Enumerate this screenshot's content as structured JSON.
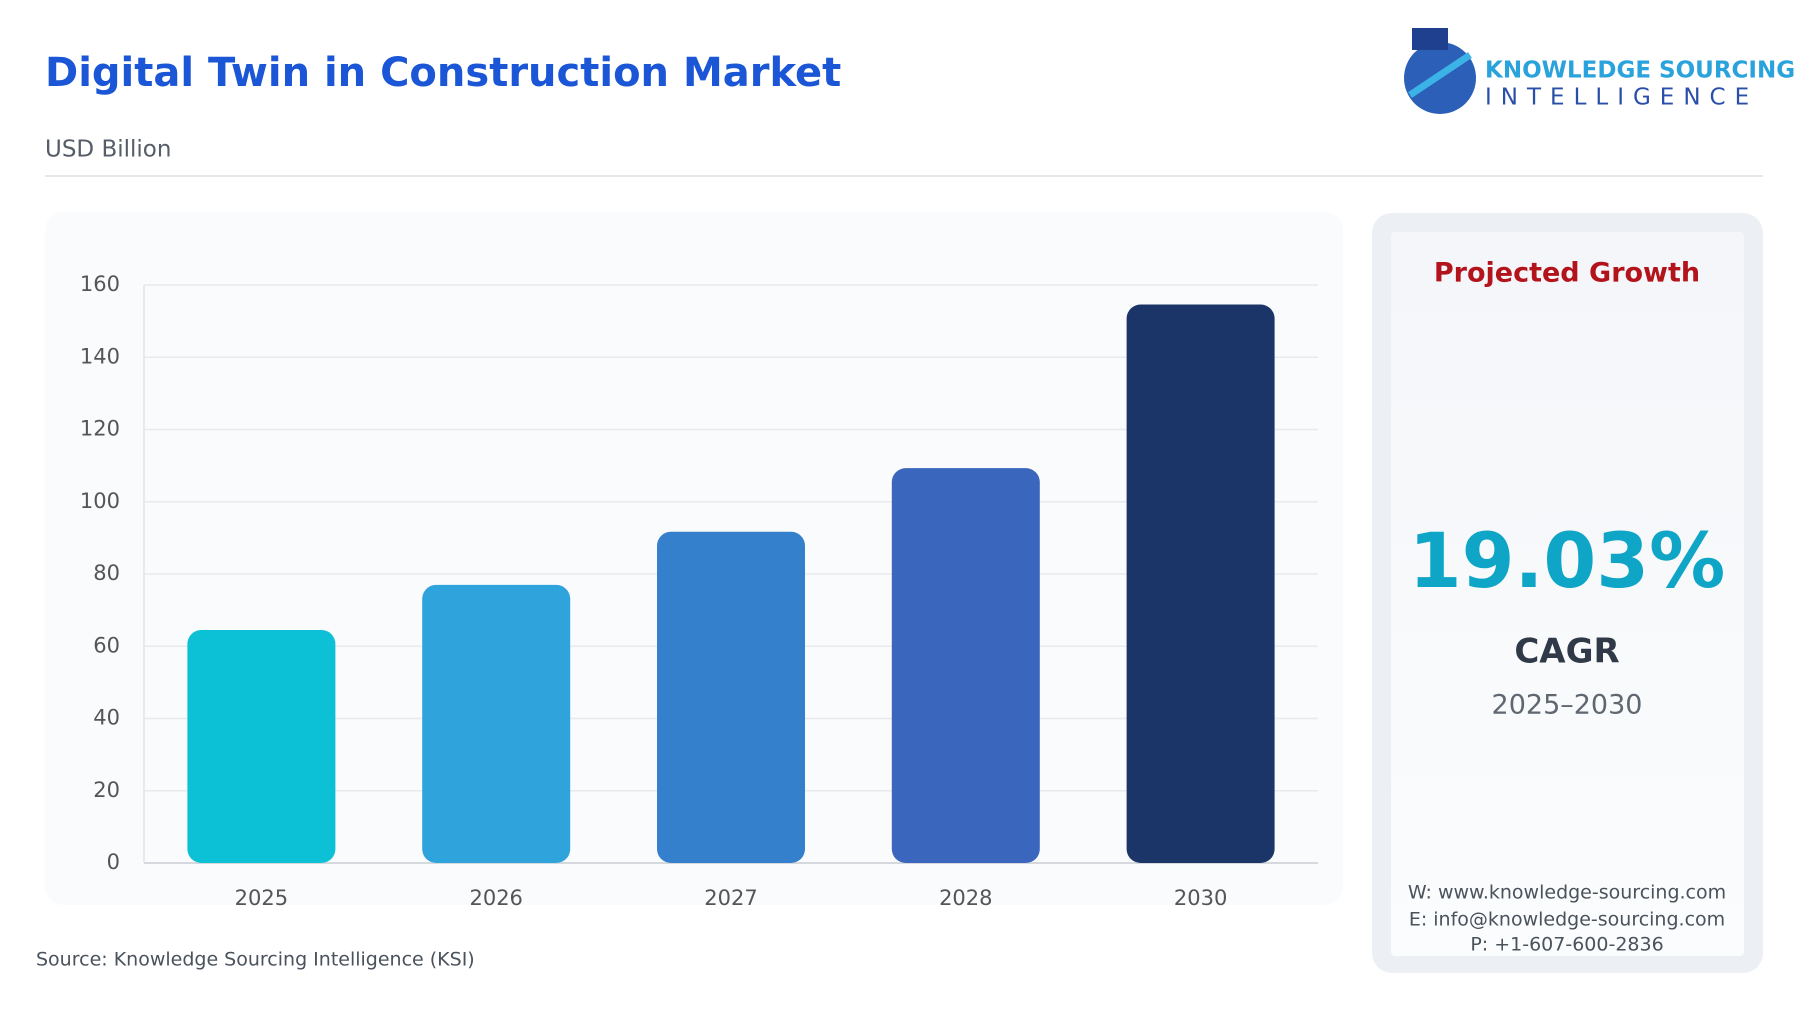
{
  "header": {
    "title": "Digital Twin in Construction Market",
    "subtitle": "USD Billion"
  },
  "logo": {
    "line1": "KNOWLEDGE SOURCING",
    "line2": "INTELLIGENCE"
  },
  "chart_data": {
    "type": "bar",
    "categories": [
      "2025",
      "2026",
      "2027",
      "2028",
      "2030"
    ],
    "values": [
      64.5,
      77,
      91.7,
      109.3,
      154.6
    ],
    "colors": [
      "#0cc1d6",
      "#2ea3dc",
      "#3580cc",
      "#3a66bd",
      "#1c3568"
    ],
    "ylim": [
      0,
      160
    ],
    "yticks": [
      0,
      20,
      40,
      60,
      80,
      100,
      120,
      140,
      160
    ],
    "grid": true
  },
  "growth": {
    "heading": "Projected Growth",
    "value": "19.03%",
    "label": "CAGR",
    "period": "2025–2030",
    "website": "W: www.knowledge-sourcing.com",
    "email": "E: info@knowledge-sourcing.com",
    "phone": "P: +1-607-600-2836"
  },
  "source": "Source: Knowledge Sourcing Intelligence (KSI)"
}
